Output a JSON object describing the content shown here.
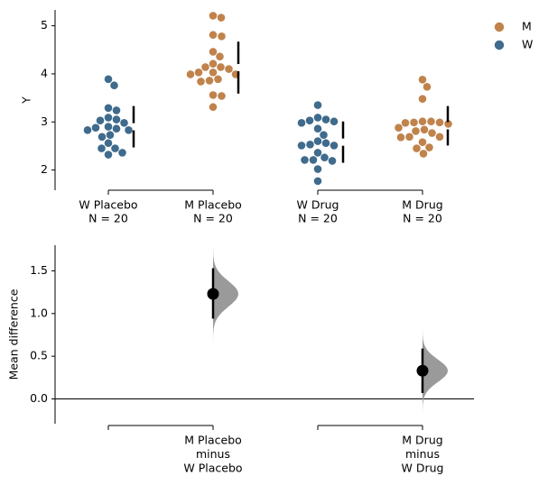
{
  "chart_data": [
    {
      "type": "swarm",
      "ylabel": "Y",
      "ylim": [
        1.58,
        5.33
      ],
      "yticks": [
        2,
        3,
        4,
        5
      ],
      "legend": [
        {
          "name": "M",
          "color": "#c0834c"
        },
        {
          "name": "W",
          "color": "#3f6b8c"
        }
      ],
      "groups": [
        {
          "name": "W Placebo",
          "count_label": "N = 20",
          "color": "#3f6b8c",
          "mean": 2.9,
          "sd": 0.43,
          "values": [
            3.89,
            3.76,
            3.29,
            3.24,
            3.09,
            3.05,
            3.03,
            2.98,
            2.9,
            2.88,
            2.86,
            2.83,
            2.83,
            2.73,
            2.69,
            2.56,
            2.45,
            2.45,
            2.36,
            2.32
          ]
        },
        {
          "name": "M Placebo",
          "count_label": "N = 20",
          "color": "#c0834c",
          "mean": 4.13,
          "sd": 0.54,
          "values": [
            5.21,
            5.17,
            4.81,
            4.78,
            4.46,
            4.36,
            4.21,
            4.14,
            4.14,
            4.1,
            4.03,
            4.03,
            3.99,
            3.99,
            3.89,
            3.86,
            3.84,
            3.56,
            3.54,
            3.31
          ]
        },
        {
          "name": "W Drug",
          "count_label": "N = 20",
          "color": "#3f6b8c",
          "mean": 2.58,
          "sd": 0.43,
          "values": [
            3.35,
            3.09,
            3.05,
            3.03,
            3.01,
            2.98,
            2.86,
            2.73,
            2.56,
            2.6,
            2.53,
            2.51,
            2.51,
            2.36,
            2.26,
            2.21,
            2.21,
            2.19,
            2.02,
            1.77
          ]
        },
        {
          "name": "M Drug",
          "count_label": "N = 20",
          "color": "#c0834c",
          "mean": 2.92,
          "sd": 0.41,
          "values": [
            3.88,
            3.73,
            3.48,
            3.01,
            3.01,
            2.99,
            2.99,
            2.98,
            2.96,
            2.88,
            2.84,
            2.81,
            2.77,
            2.69,
            2.69,
            2.68,
            2.58,
            2.47,
            2.45,
            2.34
          ]
        }
      ]
    },
    {
      "type": "mean_diff",
      "ylabel": "Mean difference",
      "ylim": [
        -0.29,
        1.8
      ],
      "yticks": [
        {
          "value": 0,
          "label": "0.0"
        },
        0.5,
        {
          "value": 1,
          "label": "1.0"
        },
        1.5
      ],
      "dist_color": "#9a9a9a",
      "comparisons": [
        {
          "label": [
            "M Placebo",
            "minus",
            "W Placebo"
          ],
          "effect": 1.23,
          "ci": [
            0.94,
            1.53
          ]
        },
        {
          "label": [
            "M Drug",
            "minus",
            "W Drug"
          ],
          "effect": 0.33,
          "ci": [
            0.07,
            0.59
          ]
        }
      ]
    }
  ]
}
